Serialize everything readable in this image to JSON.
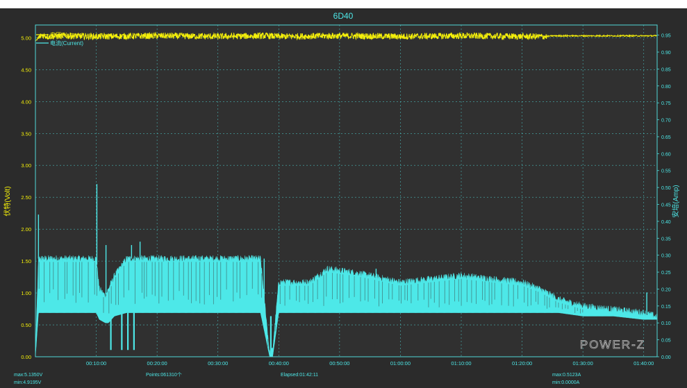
{
  "window": {
    "background": "#2b2b2b",
    "plot_background": "#303030",
    "grid_color": "#4fd8d8",
    "frame_color": "#4fd8d8"
  },
  "logo": {
    "text": "POWER-Z"
  },
  "footer": {
    "voltage_max": "max:5.1350V",
    "voltage_min": "min:4.9195V",
    "points": "Points:061310个",
    "elapsed": "Elapsed:01:42:11",
    "current_max": "max:0.5123A",
    "current_min": "min:0.0000A"
  },
  "chart_data": {
    "type": "line",
    "title": "6D40",
    "ylabel": "伏特(Volt)",
    "y2label": "安培(Amp)",
    "xlabel": "",
    "grid": true,
    "legend_position": "top-left",
    "xlim_minutes": [
      0,
      102.2
    ],
    "ylim": [
      0,
      5.2
    ],
    "y2lim": [
      0,
      0.98
    ],
    "x_ticks": [
      "00:10:00",
      "00:20:00",
      "00:30:00",
      "00:40:00",
      "00:50:00",
      "01:00:00",
      "01:10:00",
      "01:20:00",
      "01:30:00",
      "01:40:00"
    ],
    "x_tick_minutes": [
      10,
      20,
      30,
      40,
      50,
      60,
      70,
      80,
      90,
      100
    ],
    "y_ticks": [
      "0.00",
      "0.50",
      "1.00",
      "1.50",
      "2.00",
      "2.50",
      "3.00",
      "3.50",
      "4.00",
      "4.50",
      "5.00"
    ],
    "y2_ticks": [
      "0.00",
      "0.05",
      "0.10",
      "0.15",
      "0.20",
      "0.25",
      "0.30",
      "0.35",
      "0.40",
      "0.45",
      "0.50",
      "0.55",
      "0.60",
      "0.65",
      "0.70",
      "0.75",
      "0.80",
      "0.85",
      "0.90",
      "0.95"
    ],
    "series": [
      {
        "name": "电压(Voltage)",
        "axis": "left",
        "color": "#f5f00a",
        "x_minutes": [
          0,
          1,
          2,
          5,
          10,
          20,
          30,
          38,
          40,
          50,
          60,
          70,
          80,
          84,
          85,
          90,
          100,
          102
        ],
        "y": [
          4.95,
          5.04,
          5.02,
          5.03,
          5.02,
          5.03,
          5.02,
          5.03,
          5.02,
          5.03,
          5.02,
          5.03,
          5.02,
          5.02,
          5.03,
          5.03,
          5.03,
          5.03
        ],
        "noise_band": [
          [
            0.3,
            84.0,
            0.05
          ],
          [
            84.0,
            102.2,
            0.01
          ]
        ]
      },
      {
        "name": "电流(Current)",
        "axis": "right",
        "color": "#4de8e8",
        "x_minutes": [
          0,
          0.5,
          1,
          5,
          10,
          10.5,
          11.5,
          12,
          13,
          15,
          17,
          20,
          25,
          30,
          35,
          37,
          38.5,
          39,
          40,
          45,
          48,
          52,
          55,
          60,
          65,
          70,
          75,
          80,
          83,
          86,
          90,
          95,
          100,
          102
        ],
        "upper": [
          0.01,
          0.29,
          0.29,
          0.29,
          0.29,
          0.2,
          0.18,
          0.2,
          0.24,
          0.29,
          0.29,
          0.29,
          0.29,
          0.29,
          0.29,
          0.29,
          0.01,
          0.02,
          0.22,
          0.22,
          0.26,
          0.25,
          0.24,
          0.22,
          0.23,
          0.24,
          0.23,
          0.22,
          0.2,
          0.17,
          0.15,
          0.14,
          0.13,
          0.12
        ],
        "lower": [
          0.0,
          0.13,
          0.13,
          0.13,
          0.13,
          0.11,
          0.1,
          0.1,
          0.12,
          0.13,
          0.13,
          0.13,
          0.13,
          0.13,
          0.13,
          0.13,
          0.0,
          0.0,
          0.13,
          0.13,
          0.13,
          0.13,
          0.13,
          0.13,
          0.13,
          0.13,
          0.13,
          0.13,
          0.13,
          0.13,
          0.12,
          0.12,
          0.11,
          0.11
        ],
        "spikes": [
          {
            "x": 0.5,
            "y": 0.42
          },
          {
            "x": 10.1,
            "y": 0.51
          },
          {
            "x": 11.6,
            "y": 0.33
          },
          {
            "x": 15.8,
            "y": 0.33
          },
          {
            "x": 17.2,
            "y": 0.34
          },
          {
            "x": 37.6,
            "y": 0.29
          },
          {
            "x": 48.5,
            "y": 0.26
          },
          {
            "x": 56,
            "y": 0.26
          },
          {
            "x": 100.5,
            "y": 0.19
          }
        ],
        "dropouts": [
          {
            "x": 12.4,
            "y": 0.02
          },
          {
            "x": 14.2,
            "y": 0.02
          },
          {
            "x": 15.2,
            "y": 0.02
          },
          {
            "x": 16.2,
            "y": 0.02
          },
          {
            "x": 38.7,
            "y": 0.0
          }
        ]
      }
    ]
  }
}
